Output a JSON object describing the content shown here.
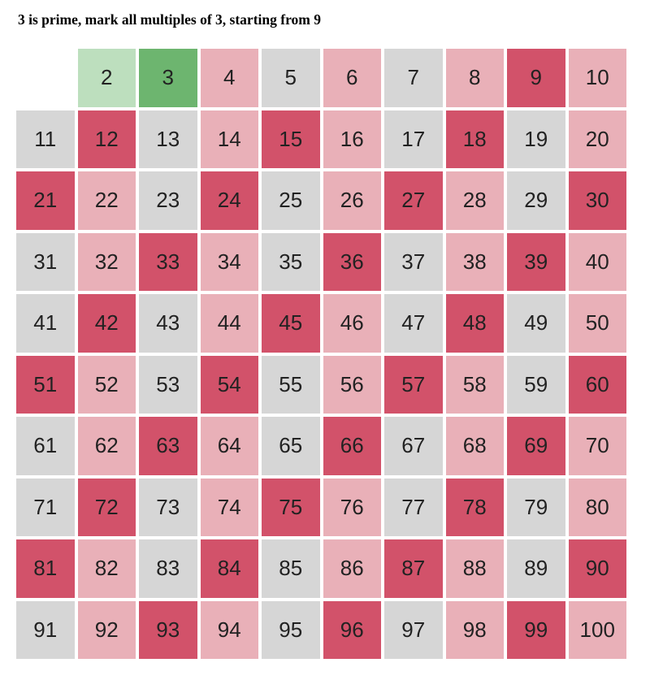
{
  "caption": "3 is prime, mark all multiples of 3, starting from 9",
  "sieve": {
    "start": 2,
    "end": 100,
    "columns": 10,
    "current_prime": 3,
    "previous_primes": [
      2
    ],
    "status_colors": {
      "prime_found": "#bddfbe",
      "current_prime": "#6db56f",
      "already_marked": "#e9b0b8",
      "just_marked": "#d2526a",
      "unmarked": "#d6d6d6"
    },
    "numbers": [
      {
        "label": "2",
        "status": "prime_found"
      },
      {
        "label": "3",
        "status": "current_prime"
      },
      {
        "label": "4",
        "status": "already_marked"
      },
      {
        "label": "5",
        "status": "unmarked"
      },
      {
        "label": "6",
        "status": "already_marked"
      },
      {
        "label": "7",
        "status": "unmarked"
      },
      {
        "label": "8",
        "status": "already_marked"
      },
      {
        "label": "9",
        "status": "just_marked"
      },
      {
        "label": "10",
        "status": "already_marked"
      },
      {
        "label": "11",
        "status": "unmarked"
      },
      {
        "label": "12",
        "status": "just_marked"
      },
      {
        "label": "13",
        "status": "unmarked"
      },
      {
        "label": "14",
        "status": "already_marked"
      },
      {
        "label": "15",
        "status": "just_marked"
      },
      {
        "label": "16",
        "status": "already_marked"
      },
      {
        "label": "17",
        "status": "unmarked"
      },
      {
        "label": "18",
        "status": "just_marked"
      },
      {
        "label": "19",
        "status": "unmarked"
      },
      {
        "label": "20",
        "status": "already_marked"
      },
      {
        "label": "21",
        "status": "just_marked"
      },
      {
        "label": "22",
        "status": "already_marked"
      },
      {
        "label": "23",
        "status": "unmarked"
      },
      {
        "label": "24",
        "status": "just_marked"
      },
      {
        "label": "25",
        "status": "unmarked"
      },
      {
        "label": "26",
        "status": "already_marked"
      },
      {
        "label": "27",
        "status": "just_marked"
      },
      {
        "label": "28",
        "status": "already_marked"
      },
      {
        "label": "29",
        "status": "unmarked"
      },
      {
        "label": "30",
        "status": "just_marked"
      },
      {
        "label": "31",
        "status": "unmarked"
      },
      {
        "label": "32",
        "status": "already_marked"
      },
      {
        "label": "33",
        "status": "just_marked"
      },
      {
        "label": "34",
        "status": "already_marked"
      },
      {
        "label": "35",
        "status": "unmarked"
      },
      {
        "label": "36",
        "status": "just_marked"
      },
      {
        "label": "37",
        "status": "unmarked"
      },
      {
        "label": "38",
        "status": "already_marked"
      },
      {
        "label": "39",
        "status": "just_marked"
      },
      {
        "label": "40",
        "status": "already_marked"
      },
      {
        "label": "41",
        "status": "unmarked"
      },
      {
        "label": "42",
        "status": "just_marked"
      },
      {
        "label": "43",
        "status": "unmarked"
      },
      {
        "label": "44",
        "status": "already_marked"
      },
      {
        "label": "45",
        "status": "just_marked"
      },
      {
        "label": "46",
        "status": "already_marked"
      },
      {
        "label": "47",
        "status": "unmarked"
      },
      {
        "label": "48",
        "status": "just_marked"
      },
      {
        "label": "49",
        "status": "unmarked"
      },
      {
        "label": "50",
        "status": "already_marked"
      },
      {
        "label": "51",
        "status": "just_marked"
      },
      {
        "label": "52",
        "status": "already_marked"
      },
      {
        "label": "53",
        "status": "unmarked"
      },
      {
        "label": "54",
        "status": "just_marked"
      },
      {
        "label": "55",
        "status": "unmarked"
      },
      {
        "label": "56",
        "status": "already_marked"
      },
      {
        "label": "57",
        "status": "just_marked"
      },
      {
        "label": "58",
        "status": "already_marked"
      },
      {
        "label": "59",
        "status": "unmarked"
      },
      {
        "label": "60",
        "status": "just_marked"
      },
      {
        "label": "61",
        "status": "unmarked"
      },
      {
        "label": "62",
        "status": "already_marked"
      },
      {
        "label": "63",
        "status": "just_marked"
      },
      {
        "label": "64",
        "status": "already_marked"
      },
      {
        "label": "65",
        "status": "unmarked"
      },
      {
        "label": "66",
        "status": "just_marked"
      },
      {
        "label": "67",
        "status": "unmarked"
      },
      {
        "label": "68",
        "status": "already_marked"
      },
      {
        "label": "69",
        "status": "just_marked"
      },
      {
        "label": "70",
        "status": "already_marked"
      },
      {
        "label": "71",
        "status": "unmarked"
      },
      {
        "label": "72",
        "status": "just_marked"
      },
      {
        "label": "73",
        "status": "unmarked"
      },
      {
        "label": "74",
        "status": "already_marked"
      },
      {
        "label": "75",
        "status": "just_marked"
      },
      {
        "label": "76",
        "status": "already_marked"
      },
      {
        "label": "77",
        "status": "unmarked"
      },
      {
        "label": "78",
        "status": "just_marked"
      },
      {
        "label": "79",
        "status": "unmarked"
      },
      {
        "label": "80",
        "status": "already_marked"
      },
      {
        "label": "81",
        "status": "just_marked"
      },
      {
        "label": "82",
        "status": "already_marked"
      },
      {
        "label": "83",
        "status": "unmarked"
      },
      {
        "label": "84",
        "status": "just_marked"
      },
      {
        "label": "85",
        "status": "unmarked"
      },
      {
        "label": "86",
        "status": "already_marked"
      },
      {
        "label": "87",
        "status": "just_marked"
      },
      {
        "label": "88",
        "status": "already_marked"
      },
      {
        "label": "89",
        "status": "unmarked"
      },
      {
        "label": "90",
        "status": "just_marked"
      },
      {
        "label": "91",
        "status": "unmarked"
      },
      {
        "label": "92",
        "status": "already_marked"
      },
      {
        "label": "93",
        "status": "just_marked"
      },
      {
        "label": "94",
        "status": "already_marked"
      },
      {
        "label": "95",
        "status": "unmarked"
      },
      {
        "label": "96",
        "status": "just_marked"
      },
      {
        "label": "97",
        "status": "unmarked"
      },
      {
        "label": "98",
        "status": "already_marked"
      },
      {
        "label": "99",
        "status": "just_marked"
      },
      {
        "label": "100",
        "status": "already_marked"
      }
    ]
  }
}
